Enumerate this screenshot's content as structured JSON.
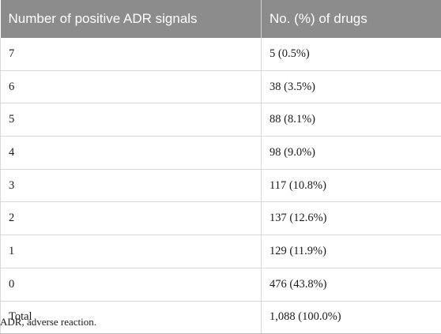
{
  "table": {
    "headers": [
      "Number of positive ADR signals",
      "No. (%) of drugs"
    ],
    "rows": [
      [
        "7",
        "5 (0.5%)"
      ],
      [
        "6",
        "38 (3.5%)"
      ],
      [
        "5",
        "88 (8.1%)"
      ],
      [
        "4",
        "98 (9.0%)"
      ],
      [
        "3",
        "117 (10.8%)"
      ],
      [
        "2",
        "137 (12.6%)"
      ],
      [
        "1",
        "129 (11.9%)"
      ],
      [
        "0",
        "476 (43.8%)"
      ],
      [
        "Total",
        "1,088 (100.0%)"
      ]
    ]
  },
  "footnote": "ADR, adverse reaction.",
  "colors": {
    "header_bg": "#8c8c8c",
    "header_text": "#ffffff",
    "grid": "#d8d8d8"
  }
}
